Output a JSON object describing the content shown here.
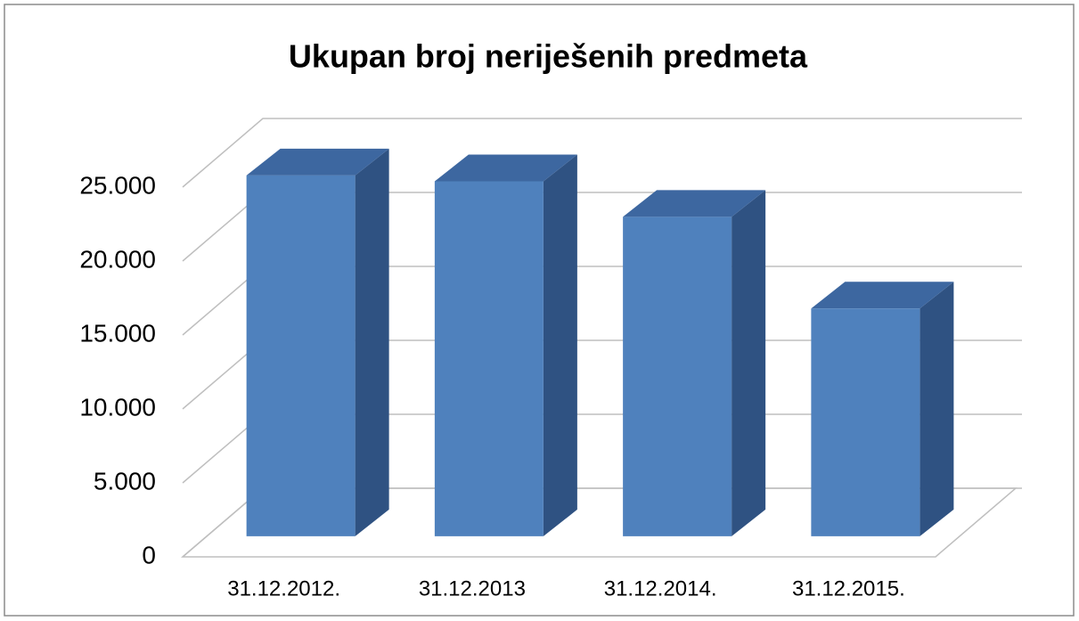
{
  "chart_data": {
    "type": "bar3d",
    "title": "Ukupan broj neriješenih predmeta",
    "categories": [
      "31.12.2012.",
      "31.12.2013",
      "31.12.2014.",
      "31.12.2015."
    ],
    "values": [
      24400,
      24000,
      21600,
      15400
    ],
    "color": "#4f81bd",
    "ylim": [
      0,
      25000
    ],
    "yticks": [
      0,
      {
        "value": 5000,
        "label": "5.000"
      },
      {
        "value": 10000,
        "label": "10.000"
      },
      {
        "value": 15000,
        "label": "15.000"
      },
      {
        "value": 20000,
        "label": "20.000"
      },
      {
        "value": 25000,
        "label": "25.000"
      }
    ],
    "grid": true
  }
}
